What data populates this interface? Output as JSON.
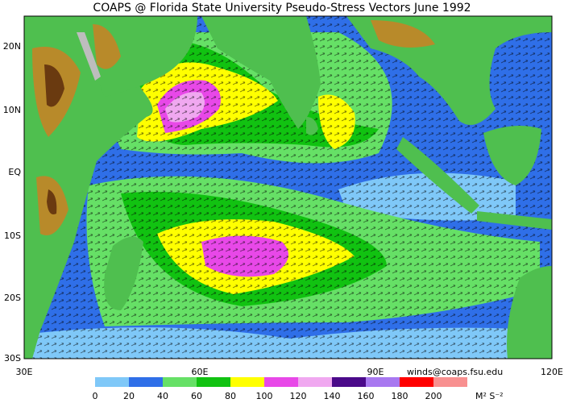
{
  "header": {
    "title": "COAPS @ Florida State University Pseudo-Stress Vectors  June 1992"
  },
  "map": {
    "lat_labels": [
      "20N",
      "10N",
      "EQ",
      "10S",
      "20S",
      "30S"
    ],
    "lon_labels": [
      "30E",
      "60E",
      "90E",
      "120E"
    ],
    "credit": "winds@coaps.fsu.edu"
  },
  "colorbar": {
    "colors": [
      "#7fc8f8",
      "#2f6fe8",
      "#66e066",
      "#11c211",
      "#ffff00",
      "#e848e8",
      "#f0a8f0",
      "#4b0a8a",
      "#a878f0",
      "#ff0000",
      "#f89090"
    ],
    "ticks": [
      0,
      20,
      40,
      60,
      80,
      100,
      120,
      140,
      160,
      180,
      200
    ],
    "unit": "M² S⁻²"
  }
}
